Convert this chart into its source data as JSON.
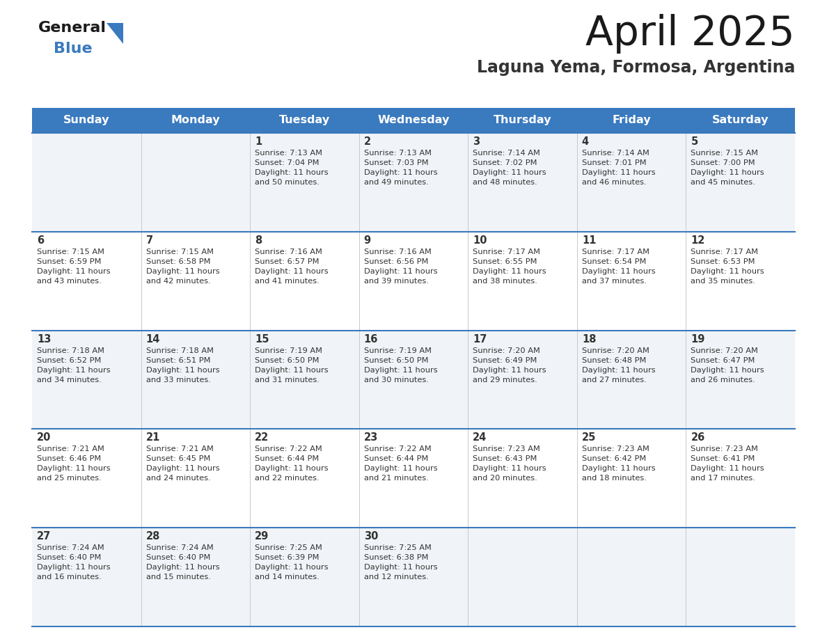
{
  "title": "April 2025",
  "subtitle": "Laguna Yema, Formosa, Argentina",
  "header_color": "#3a7abf",
  "header_text_color": "#ffffff",
  "odd_row_color": "#f0f4f8",
  "even_row_color": "#ffffff",
  "border_color": "#3a7abf",
  "title_color": "#1a1a1a",
  "subtitle_color": "#333333",
  "text_color": "#333333",
  "day_names": [
    "Sunday",
    "Monday",
    "Tuesday",
    "Wednesday",
    "Thursday",
    "Friday",
    "Saturday"
  ],
  "weeks": [
    [
      {
        "day": "",
        "info": ""
      },
      {
        "day": "",
        "info": ""
      },
      {
        "day": "1",
        "info": "Sunrise: 7:13 AM\nSunset: 7:04 PM\nDaylight: 11 hours\nand 50 minutes."
      },
      {
        "day": "2",
        "info": "Sunrise: 7:13 AM\nSunset: 7:03 PM\nDaylight: 11 hours\nand 49 minutes."
      },
      {
        "day": "3",
        "info": "Sunrise: 7:14 AM\nSunset: 7:02 PM\nDaylight: 11 hours\nand 48 minutes."
      },
      {
        "day": "4",
        "info": "Sunrise: 7:14 AM\nSunset: 7:01 PM\nDaylight: 11 hours\nand 46 minutes."
      },
      {
        "day": "5",
        "info": "Sunrise: 7:15 AM\nSunset: 7:00 PM\nDaylight: 11 hours\nand 45 minutes."
      }
    ],
    [
      {
        "day": "6",
        "info": "Sunrise: 7:15 AM\nSunset: 6:59 PM\nDaylight: 11 hours\nand 43 minutes."
      },
      {
        "day": "7",
        "info": "Sunrise: 7:15 AM\nSunset: 6:58 PM\nDaylight: 11 hours\nand 42 minutes."
      },
      {
        "day": "8",
        "info": "Sunrise: 7:16 AM\nSunset: 6:57 PM\nDaylight: 11 hours\nand 41 minutes."
      },
      {
        "day": "9",
        "info": "Sunrise: 7:16 AM\nSunset: 6:56 PM\nDaylight: 11 hours\nand 39 minutes."
      },
      {
        "day": "10",
        "info": "Sunrise: 7:17 AM\nSunset: 6:55 PM\nDaylight: 11 hours\nand 38 minutes."
      },
      {
        "day": "11",
        "info": "Sunrise: 7:17 AM\nSunset: 6:54 PM\nDaylight: 11 hours\nand 37 minutes."
      },
      {
        "day": "12",
        "info": "Sunrise: 7:17 AM\nSunset: 6:53 PM\nDaylight: 11 hours\nand 35 minutes."
      }
    ],
    [
      {
        "day": "13",
        "info": "Sunrise: 7:18 AM\nSunset: 6:52 PM\nDaylight: 11 hours\nand 34 minutes."
      },
      {
        "day": "14",
        "info": "Sunrise: 7:18 AM\nSunset: 6:51 PM\nDaylight: 11 hours\nand 33 minutes."
      },
      {
        "day": "15",
        "info": "Sunrise: 7:19 AM\nSunset: 6:50 PM\nDaylight: 11 hours\nand 31 minutes."
      },
      {
        "day": "16",
        "info": "Sunrise: 7:19 AM\nSunset: 6:50 PM\nDaylight: 11 hours\nand 30 minutes."
      },
      {
        "day": "17",
        "info": "Sunrise: 7:20 AM\nSunset: 6:49 PM\nDaylight: 11 hours\nand 29 minutes."
      },
      {
        "day": "18",
        "info": "Sunrise: 7:20 AM\nSunset: 6:48 PM\nDaylight: 11 hours\nand 27 minutes."
      },
      {
        "day": "19",
        "info": "Sunrise: 7:20 AM\nSunset: 6:47 PM\nDaylight: 11 hours\nand 26 minutes."
      }
    ],
    [
      {
        "day": "20",
        "info": "Sunrise: 7:21 AM\nSunset: 6:46 PM\nDaylight: 11 hours\nand 25 minutes."
      },
      {
        "day": "21",
        "info": "Sunrise: 7:21 AM\nSunset: 6:45 PM\nDaylight: 11 hours\nand 24 minutes."
      },
      {
        "day": "22",
        "info": "Sunrise: 7:22 AM\nSunset: 6:44 PM\nDaylight: 11 hours\nand 22 minutes."
      },
      {
        "day": "23",
        "info": "Sunrise: 7:22 AM\nSunset: 6:44 PM\nDaylight: 11 hours\nand 21 minutes."
      },
      {
        "day": "24",
        "info": "Sunrise: 7:23 AM\nSunset: 6:43 PM\nDaylight: 11 hours\nand 20 minutes."
      },
      {
        "day": "25",
        "info": "Sunrise: 7:23 AM\nSunset: 6:42 PM\nDaylight: 11 hours\nand 18 minutes."
      },
      {
        "day": "26",
        "info": "Sunrise: 7:23 AM\nSunset: 6:41 PM\nDaylight: 11 hours\nand 17 minutes."
      }
    ],
    [
      {
        "day": "27",
        "info": "Sunrise: 7:24 AM\nSunset: 6:40 PM\nDaylight: 11 hours\nand 16 minutes."
      },
      {
        "day": "28",
        "info": "Sunrise: 7:24 AM\nSunset: 6:40 PM\nDaylight: 11 hours\nand 15 minutes."
      },
      {
        "day": "29",
        "info": "Sunrise: 7:25 AM\nSunset: 6:39 PM\nDaylight: 11 hours\nand 14 minutes."
      },
      {
        "day": "30",
        "info": "Sunrise: 7:25 AM\nSunset: 6:38 PM\nDaylight: 11 hours\nand 12 minutes."
      },
      {
        "day": "",
        "info": ""
      },
      {
        "day": "",
        "info": ""
      },
      {
        "day": "",
        "info": ""
      }
    ]
  ],
  "logo_text_general": "General",
  "logo_text_blue": "Blue",
  "logo_color_general": "#1a1a1a",
  "logo_color_blue": "#3a7abf",
  "logo_triangle_color": "#3a7abf"
}
